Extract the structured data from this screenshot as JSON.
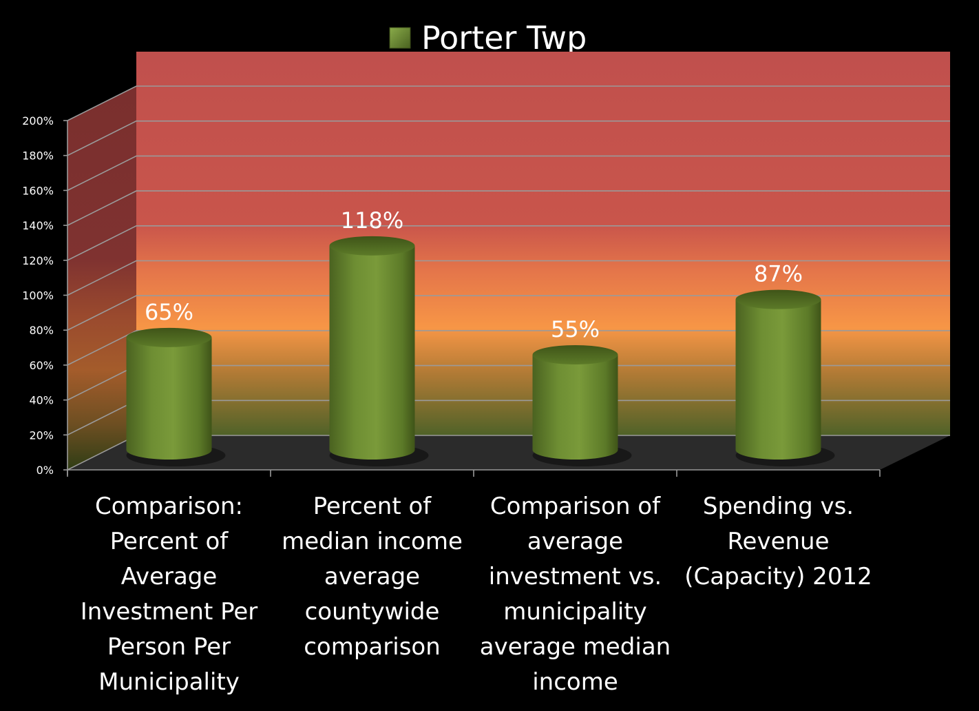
{
  "chart_data": {
    "type": "bar",
    "style": "3d-cylinder",
    "title": "",
    "legend": {
      "position": "top",
      "entries": [
        "Porter Twp"
      ]
    },
    "categories": [
      [
        "Comparison:",
        "Percent of",
        "Average",
        "Investment Per",
        "Person Per",
        "Municipality"
      ],
      [
        "Percent of",
        "median income",
        "average",
        "countywide",
        "comparison"
      ],
      [
        "Comparison of",
        "average",
        "investment vs.",
        "municipality",
        "average median",
        "income"
      ],
      [
        "Spending vs.",
        "Revenue",
        "(Capacity) 2012"
      ]
    ],
    "series": [
      {
        "name": "Porter Twp",
        "values": [
          65,
          118,
          55,
          87
        ],
        "labels": [
          "65%",
          "118%",
          "55%",
          "87%"
        ]
      }
    ],
    "yticks": [
      "0%",
      "20%",
      "40%",
      "60%",
      "80%",
      "100%",
      "120%",
      "140%",
      "160%",
      "180%",
      "200%"
    ],
    "ylim": [
      0,
      200
    ],
    "grid": true,
    "colors": {
      "bar": "#6a8a30",
      "bar_dark": "#3f5818",
      "wall_top": "#c0504d",
      "wall_mid": "#f79646",
      "wall_bottom": "#4f6228",
      "floor": "#2b2b2b",
      "gridline": "#9a9a9a",
      "text": "#ffffff"
    }
  }
}
